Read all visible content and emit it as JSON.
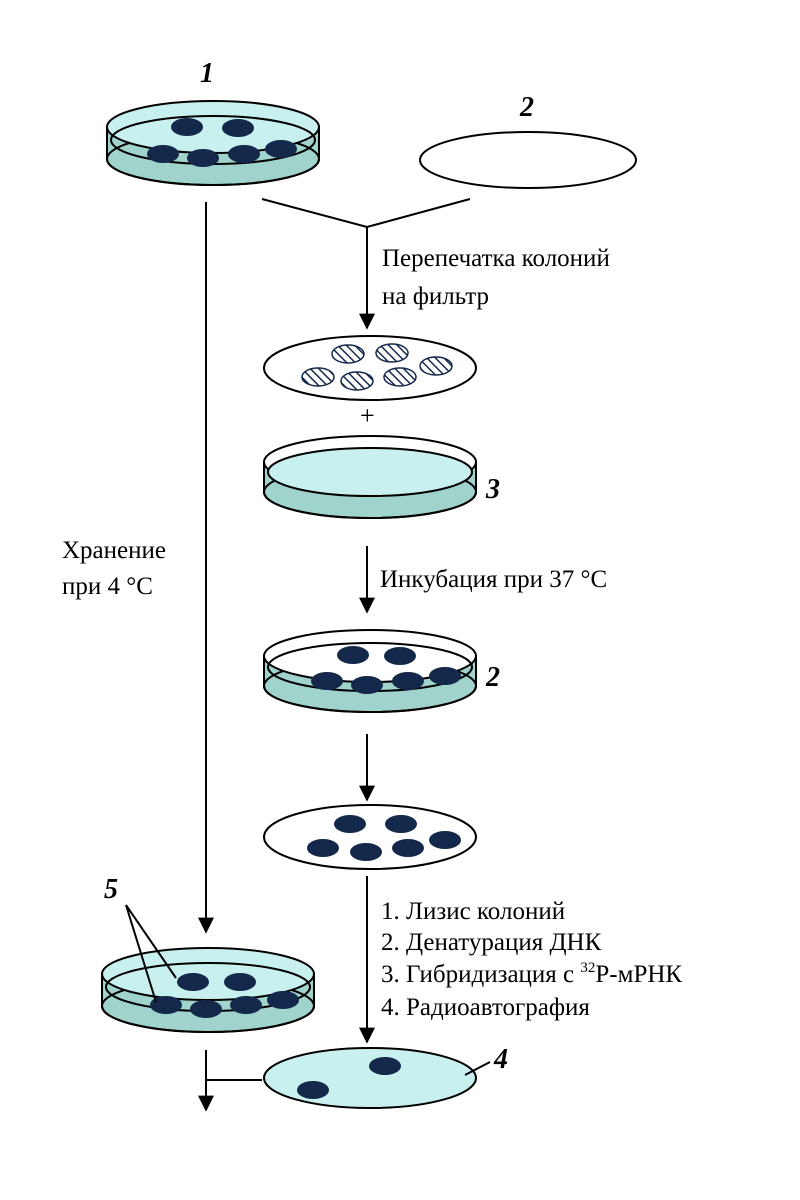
{
  "labels": {
    "dish_master": "1",
    "filter_blank": "2",
    "dish_medium": "3",
    "dish_incubated": "2",
    "final_filter": "4",
    "master_stored": "5",
    "plus": "+"
  },
  "steps": {
    "replica_line1": "Перепечатка колоний",
    "replica_line2": "на фильтр",
    "incubation": "Инкубация при 37 °С",
    "storage_line1": "Хранение",
    "storage_line2": "при 4 °С",
    "lysis": "1. Лизис колоний",
    "denaturation": "2. Денатурация ДНК",
    "hybridization_prefix": "3. Гибридизация с ",
    "hybridization_sup": "32",
    "hybridization_suffix": "Р-мРНК",
    "autoradiography": "4. Радиоавтография"
  },
  "colors": {
    "medium_fill": "#c8f0ee",
    "dish_base": "#9fd3cc",
    "colony": "#13284a",
    "outline": "#000000"
  }
}
